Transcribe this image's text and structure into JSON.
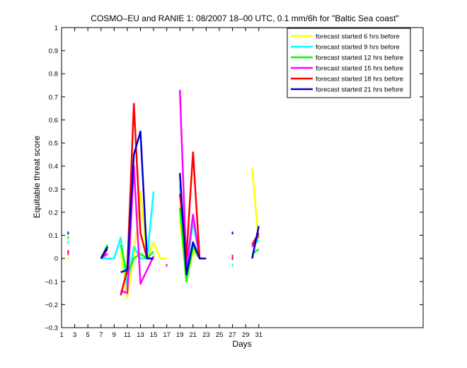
{
  "chart_data": {
    "type": "line",
    "title": "COSMO–EU and RANIE 1: 08/2007 18–00 UTC, 0.1 mm/6h for \"Baltic Sea coast\"",
    "xlabel": "Days",
    "ylabel": "Equitable threat score",
    "xlim": [
      1,
      56
    ],
    "ylim": [
      -0.3,
      1
    ],
    "xticks": [
      1,
      3,
      5,
      7,
      9,
      11,
      13,
      15,
      17,
      19,
      21,
      23,
      25,
      27,
      29,
      31
    ],
    "yticks": [
      -0.3,
      -0.2,
      -0.1,
      0,
      0.1,
      0.2,
      0.3,
      0.4,
      0.5,
      0.6,
      0.7,
      0.8,
      0.9,
      1
    ],
    "ytick_labels": [
      "−0.3",
      "−0.2",
      "−0.1",
      "0",
      "0.1",
      "0.2",
      "0.3",
      "0.4",
      "0.5",
      "0.6",
      "0.7",
      "0.8",
      "0.9",
      "1"
    ],
    "grid": false,
    "legend_position": "top-right",
    "series": [
      {
        "name": "forecast started 6 hrs before",
        "color": "#ffff00",
        "segments": [
          [
            [
              2,
              0.0
            ]
          ],
          [
            [
              7,
              0.0
            ],
            [
              8,
              0.05
            ]
          ],
          [
            [
              10,
              0.03
            ],
            [
              11,
              -0.17
            ],
            [
              12,
              0.01
            ],
            [
              13,
              0.29
            ],
            [
              14,
              0.0
            ],
            [
              15,
              0.07
            ],
            [
              16,
              0.0
            ],
            [
              17,
              0.0
            ]
          ],
          [
            [
              19,
              0.17
            ],
            [
              20,
              -0.1
            ],
            [
              21,
              0.03
            ],
            [
              22,
              0.0
            ],
            [
              23,
              0.0
            ]
          ],
          [
            [
              30,
              0.39
            ],
            [
              31,
              0.07
            ]
          ]
        ]
      },
      {
        "name": "forecast started 9 hrs before",
        "color": "#00ffff",
        "segments": [
          [
            [
              2,
              0.07
            ]
          ],
          [
            [
              7,
              0.0
            ],
            [
              8,
              0.0
            ],
            [
              9,
              0.0
            ],
            [
              10,
              0.09
            ],
            [
              11,
              -0.12
            ],
            [
              12,
              0.05
            ],
            [
              13,
              0.0
            ],
            [
              14,
              0.0
            ],
            [
              15,
              0.29
            ]
          ],
          [
            [
              19,
              0.32
            ],
            [
              20,
              -0.06
            ],
            [
              21,
              0.16
            ],
            [
              22,
              0.0
            ]
          ],
          [
            [
              27,
              -0.03
            ]
          ],
          [
            [
              30,
              0.05
            ],
            [
              31,
              0.08
            ]
          ]
        ]
      },
      {
        "name": "forecast started 12 hrs before",
        "color": "#00ff00",
        "segments": [
          [
            [
              2,
              0.09
            ]
          ],
          [
            [
              7,
              0.0
            ],
            [
              8,
              0.06
            ]
          ],
          [
            [
              10,
              0.06
            ],
            [
              11,
              -0.07
            ],
            [
              12,
              0.0
            ],
            [
              13,
              0.02
            ],
            [
              14,
              0.0
            ],
            [
              15,
              0.03
            ]
          ],
          [
            [
              19,
              0.22
            ],
            [
              20,
              -0.1
            ],
            [
              21,
              0.05
            ],
            [
              22,
              0.0
            ]
          ],
          [
            [
              27,
              0.0
            ]
          ],
          [
            [
              30,
              0.02
            ],
            [
              31,
              0.04
            ]
          ]
        ]
      },
      {
        "name": "forecast started 15 hrs before",
        "color": "#ff00ff",
        "segments": [
          [
            [
              2,
              0.02
            ]
          ],
          [
            [
              7,
              0.0
            ],
            [
              8,
              0.02
            ]
          ],
          [
            [
              10,
              -0.14
            ],
            [
              11,
              -0.15
            ],
            [
              12,
              0.4
            ],
            [
              13,
              -0.11
            ],
            [
              14,
              -0.05
            ],
            [
              15,
              0.01
            ]
          ],
          [
            [
              17,
              -0.03
            ]
          ],
          [
            [
              19,
              0.73
            ],
            [
              20,
              -0.04
            ],
            [
              21,
              0.19
            ],
            [
              22,
              0.0
            ]
          ],
          [
            [
              27,
              0.01
            ]
          ],
          [
            [
              30,
              0.05
            ],
            [
              31,
              0.1
            ]
          ]
        ]
      },
      {
        "name": "forecast started 18 hrs before",
        "color": "#ff0000",
        "segments": [
          [
            [
              2,
              0.03
            ]
          ],
          [
            [
              7,
              0.0
            ],
            [
              8,
              0.04
            ]
          ],
          [
            [
              10,
              -0.16
            ],
            [
              11,
              -0.05
            ],
            [
              12,
              0.67
            ],
            [
              13,
              0.11
            ],
            [
              14,
              0.0
            ],
            [
              15,
              0.0
            ]
          ],
          [
            [
              19,
              0.28
            ],
            [
              20,
              0.01
            ],
            [
              21,
              0.46
            ],
            [
              22,
              0.0
            ]
          ],
          [
            [
              27,
              0.0
            ]
          ],
          [
            [
              30,
              0.06
            ],
            [
              31,
              0.11
            ]
          ]
        ]
      },
      {
        "name": "forecast started 21 hrs before",
        "color": "#0000cc",
        "segments": [
          [
            [
              2,
              0.11
            ]
          ],
          [
            [
              7,
              0.0
            ],
            [
              8,
              0.05
            ]
          ],
          [
            [
              10,
              -0.06
            ],
            [
              11,
              -0.05
            ],
            [
              12,
              0.45
            ],
            [
              13,
              0.55
            ],
            [
              14,
              0.0
            ],
            [
              15,
              0.0
            ]
          ],
          [
            [
              19,
              0.37
            ],
            [
              20,
              -0.07
            ],
            [
              21,
              0.07
            ],
            [
              22,
              0.0
            ],
            [
              23,
              0.0
            ]
          ],
          [
            [
              27,
              0.11
            ]
          ],
          [
            [
              30,
              0.0
            ],
            [
              31,
              0.14
            ]
          ]
        ]
      }
    ]
  }
}
